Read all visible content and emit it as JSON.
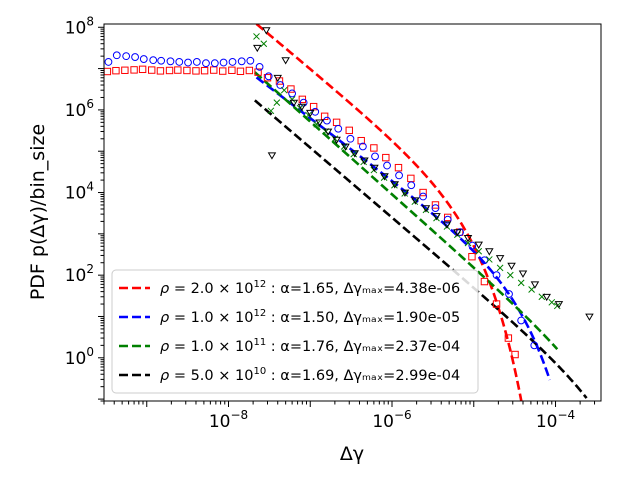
{
  "chart_data": {
    "type": "scatter",
    "xscale": "log",
    "yscale": "log",
    "xlim": [
      3e-10,
      0.00036
    ],
    "ylim": [
      0.09,
      120000000.0
    ],
    "xlabel": "Δγ",
    "ylabel": "PDF  p(Δγ)/bin_size",
    "x_ticks": [
      {
        "value": 1e-08,
        "base": "10",
        "exp": "−8"
      },
      {
        "value": 1e-06,
        "base": "10",
        "exp": "−6"
      },
      {
        "value": 0.0001,
        "base": "10",
        "exp": "−4"
      }
    ],
    "y_ticks": [
      {
        "value": 1,
        "base": "10",
        "exp": "0"
      },
      {
        "value": 100,
        "base": "10",
        "exp": "2"
      },
      {
        "value": 10000,
        "base": "10",
        "exp": "4"
      },
      {
        "value": 1000000,
        "base": "10",
        "exp": "6"
      },
      {
        "value": 100000000,
        "base": "10",
        "exp": "8"
      }
    ],
    "legend_position": "lower-left",
    "series": [
      {
        "name": "rho_2.0e12",
        "color": "#ff0000",
        "marker": "square",
        "legend": {
          "rho_mant": "2.0",
          "rho_exp": "12",
          "stats": " : α=1.65, Δγₘₐₓ=4.38e-06"
        },
        "fit": {
          "alpha": 1.65,
          "xmax": 4.38e-06,
          "amplitude": 2.8e-05,
          "x_start": 2.2e-08,
          "x_end": 5.5e-05
        },
        "points": [
          [
            3.3e-10,
            8500000.0
          ],
          [
            4.2e-10,
            8900000.0
          ],
          [
            5.4e-10,
            9100000.0
          ],
          [
            7e-10,
            9300000.0
          ],
          [
            8.9e-10,
            9600000.0
          ],
          [
            1.15e-09,
            9200000.0
          ],
          [
            1.47e-09,
            8800000.0
          ],
          [
            1.9e-09,
            9000000.0
          ],
          [
            2.4e-09,
            9200000.0
          ],
          [
            3.1e-09,
            9000000.0
          ],
          [
            4e-09,
            8800000.0
          ],
          [
            5.1e-09,
            8900000.0
          ],
          [
            6.6e-09,
            9200000.0
          ],
          [
            8.5e-09,
            8700000.0
          ],
          [
            1.1e-08,
            9100000.0
          ],
          [
            1.4e-08,
            8600000.0
          ],
          [
            1.8e-08,
            9000000.0
          ],
          [
            2.3e-08,
            8200000.0
          ],
          [
            3e-08,
            6000000.0
          ],
          [
            4.2e-08,
            5000000.0
          ],
          [
            5.8e-08,
            3200000.0
          ],
          [
            8e-08,
            1800000.0
          ],
          [
            1.1e-07,
            1200000.0
          ],
          [
            1.5e-07,
            700000.0
          ],
          [
            2.1e-07,
            500000.0
          ],
          [
            3e-07,
            320000.0
          ],
          [
            4.2e-07,
            180000.0
          ],
          [
            6e-07,
            120000.0
          ],
          [
            8.4e-07,
            70000.0
          ],
          [
            1.2e-06,
            40000.0
          ],
          [
            1.7e-06,
            22000.0
          ],
          [
            2.4e-06,
            10000.0
          ],
          [
            3.4e-06,
            5000.0
          ],
          [
            4.8e-06,
            2500.0
          ],
          [
            6.7e-06,
            1100.0
          ],
          [
            9.5e-06,
            280
          ],
          [
            1.35e-05,
            70
          ],
          [
            1.9e-05,
            20
          ],
          [
            2.65e-05,
            3.0
          ],
          [
            3.2e-05,
            1.2
          ]
        ]
      },
      {
        "name": "rho_1.0e12",
        "color": "#0000ff",
        "marker": "circle",
        "legend": {
          "rho_mant": "1.0",
          "rho_exp": "12",
          "stats": " : α=1.50, Δγₘₐₓ=1.90e-05"
        },
        "fit": {
          "alpha": 1.5,
          "xmax": 1.9e-05,
          "amplitude": 2e-05,
          "x_start": 2.2e-08,
          "x_end": 8.5e-05
        },
        "points": [
          [
            3.4e-10,
            14500000.0
          ],
          [
            4.3e-10,
            21000000.0
          ],
          [
            5.6e-10,
            20000000.0
          ],
          [
            7.2e-10,
            19000000.0
          ],
          [
            9.2e-10,
            17000000.0
          ],
          [
            1.2e-09,
            16000000.0
          ],
          [
            1.5e-09,
            15500000.0
          ],
          [
            1.95e-09,
            15000000.0
          ],
          [
            2.5e-09,
            14500000.0
          ],
          [
            3.2e-09,
            14000000.0
          ],
          [
            4.1e-09,
            14500000.0
          ],
          [
            5.3e-09,
            13500000.0
          ],
          [
            6.8e-09,
            13500000.0
          ],
          [
            8.7e-09,
            14000000.0
          ],
          [
            1.12e-08,
            14500000.0
          ],
          [
            1.45e-08,
            15000000.0
          ],
          [
            1.85e-08,
            15500000.0
          ],
          [
            2.4e-08,
            11000000.0
          ],
          [
            3.1e-08,
            6500000.0
          ],
          [
            4.3e-08,
            4000000.0
          ],
          [
            6e-08,
            2500000.0
          ],
          [
            8.3e-08,
            1500000.0
          ],
          [
            1.15e-07,
            900000.0
          ],
          [
            1.6e-07,
            550000.0
          ],
          [
            2.2e-07,
            350000.0
          ],
          [
            3.1e-07,
            200000.0
          ],
          [
            4.4e-07,
            130000.0
          ],
          [
            6.2e-07,
            75000.0
          ],
          [
            8.7e-07,
            45000.0
          ],
          [
            1.22e-06,
            26000.0
          ],
          [
            1.72e-06,
            15000.0
          ],
          [
            2.4e-06,
            8000.0
          ],
          [
            3.4e-06,
            4200.0
          ],
          [
            4.8e-06,
            2200.0
          ],
          [
            6.8e-06,
            1100.0
          ],
          [
            9.6e-06,
            520
          ],
          [
            1.35e-05,
            230
          ],
          [
            1.9e-05,
            100
          ],
          [
            2.7e-05,
            35
          ],
          [
            3.8e-05,
            8
          ],
          [
            5.5e-05,
            2.0
          ]
        ]
      },
      {
        "name": "rho_1.0e11",
        "color": "#008000",
        "marker": "x",
        "legend": {
          "rho_mant": "1.0",
          "rho_exp": "11",
          "stats": " : α=1.76, Δγₘₐₓ=2.37e-04"
        },
        "fit": {
          "alpha": 1.76,
          "xmax": 0.000237,
          "amplitude": 2.5e-07,
          "x_start": 2.1e-08,
          "x_end": 0.000105
        },
        "points": [
          [
            2.2e-08,
            60000000.0
          ],
          [
            2.7e-08,
            40000000.0
          ],
          [
            3.3e-08,
            950000.0
          ],
          [
            3.9e-08,
            1500000.0
          ],
          [
            4.8e-08,
            3000000.0
          ],
          [
            6e-08,
            1800000.0
          ],
          [
            7.5e-08,
            1100000.0
          ],
          [
            9.5e-08,
            750000.0
          ],
          [
            1.2e-07,
            450000.0
          ],
          [
            1.55e-07,
            300000.0
          ],
          [
            2e-07,
            200000.0
          ],
          [
            2.6e-07,
            130000.0
          ],
          [
            3.4e-07,
            85000.0
          ],
          [
            4.5e-07,
            55000.0
          ],
          [
            6e-07,
            35000.0
          ],
          [
            8e-07,
            23000.0
          ],
          [
            1.07e-06,
            15000.0
          ],
          [
            1.43e-06,
            9500.0
          ],
          [
            1.9e-06,
            6000.0
          ],
          [
            2.6e-06,
            3800.0
          ],
          [
            3.5e-06,
            2400.0
          ],
          [
            4.7e-06,
            1500.0
          ],
          [
            6.3e-06,
            950
          ],
          [
            8.5e-06,
            600
          ],
          [
            1.15e-05,
            380
          ],
          [
            1.55e-05,
            240
          ],
          [
            2.1e-05,
            150
          ],
          [
            2.8e-05,
            100
          ],
          [
            3.8e-05,
            65
          ],
          [
            5.1e-05,
            45
          ],
          [
            6.8e-05,
            30
          ],
          [
            9e-05,
            22
          ],
          [
            0.000105,
            18
          ]
        ]
      },
      {
        "name": "rho_5.0e10",
        "color": "#000000",
        "marker": "triangle-down",
        "legend": {
          "rho_mant": "5.0",
          "rho_exp": "10",
          "stats": " : α=1.69, Δγₘₐₓ=2.99e-04"
        },
        "fit": {
          "alpha": 1.69,
          "xmax": 0.000299,
          "amplitude": 1.8e-07,
          "x_start": 2.1e-08,
          "x_end": 0.00024
        },
        "points": [
          [
            2.25e-08,
            32000000.0
          ],
          [
            2.9e-08,
            85000000.0
          ],
          [
            3.4e-08,
            80000.0
          ],
          [
            4e-08,
            6000000.0
          ],
          [
            5e-08,
            16000000.0
          ],
          [
            6.3e-08,
            1500000.0
          ],
          [
            7.9e-08,
            1200000.0
          ],
          [
            1e-07,
            850000.0
          ],
          [
            1.3e-07,
            500000.0
          ],
          [
            1.65e-07,
            300000.0
          ],
          [
            2.1e-07,
            190000.0
          ],
          [
            2.7e-07,
            130000.0
          ],
          [
            3.5e-07,
            90000.0
          ],
          [
            4.6e-07,
            60000.0
          ],
          [
            6.1e-07,
            40000.0
          ],
          [
            8.1e-07,
            25000.0
          ],
          [
            1.08e-06,
            16000.0
          ],
          [
            1.44e-06,
            10000.0
          ],
          [
            1.93e-06,
            6500.0
          ],
          [
            2.6e-06,
            4200.0
          ],
          [
            3.5e-06,
            2700.0
          ],
          [
            4.7e-06,
            1700.0
          ],
          [
            6.3e-06,
            1100.0
          ],
          [
            8.5e-06,
            800
          ],
          [
            1.15e-05,
            550
          ],
          [
            1.55e-05,
            380
          ],
          [
            2.1e-05,
            260
          ],
          [
            2.9e-05,
            170
          ],
          [
            4e-05,
            110
          ],
          [
            5.6e-05,
            60
          ],
          [
            7.8e-05,
            30
          ],
          [
            0.00011,
            20
          ],
          [
            0.00026,
            10
          ]
        ]
      }
    ]
  }
}
